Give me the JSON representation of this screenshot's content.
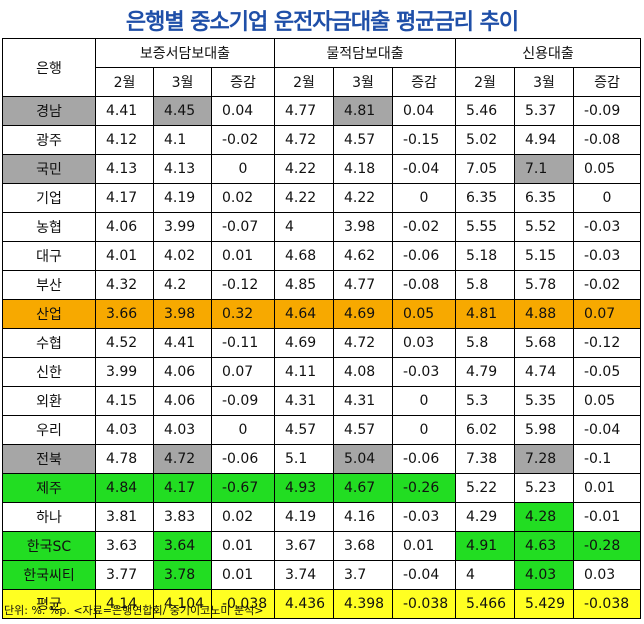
{
  "title": "은행별 중소기업 운전자금대출 평균금리 추이",
  "footnote": "단위: %. %p. <자료=은행연합회/ 중기이코노미 분석>",
  "header": {
    "bank_col": "은행",
    "groups": [
      "보증서담보대출",
      "물적담보대출",
      "신용대출"
    ],
    "sub": [
      "2월",
      "3월",
      "증감"
    ]
  },
  "colors": {
    "gray": "#a6a6a6",
    "orange": "#f7a900",
    "green": "#22dd22",
    "yellow": "#ffff22",
    "title": "#1f4fa8"
  },
  "chart_data": {
    "type": "table",
    "title": "은행별 중소기업 운전자금대출 평균금리 추이",
    "columns": [
      "은행",
      "보증서담보대출 2월",
      "보증서담보대출 3월",
      "보증서담보대출 증감",
      "물적담보대출 2월",
      "물적담보대출 3월",
      "물적담보대출 증감",
      "신용대출 2월",
      "신용대출 3월",
      "신용대출 증감"
    ],
    "rows": [
      {
        "bank": "경남",
        "values": [
          "4.41",
          "4.45",
          "0.04",
          "4.77",
          "4.81",
          "0.04",
          "5.46",
          "5.37",
          "-0.09"
        ],
        "bank_hl": "gray",
        "cell_hl": {
          "1": "gray",
          "4": "gray"
        }
      },
      {
        "bank": "광주",
        "values": [
          "4.12",
          "4.1",
          "-0.02",
          "4.72",
          "4.57",
          "-0.15",
          "5.02",
          "4.94",
          "-0.08"
        ]
      },
      {
        "bank": "국민",
        "values": [
          "4.13",
          "4.13",
          "0",
          "4.22",
          "4.18",
          "-0.04",
          "7.05",
          "7.1",
          "0.05"
        ],
        "bank_hl": "gray",
        "cell_hl": {
          "7": "gray"
        }
      },
      {
        "bank": "기업",
        "values": [
          "4.17",
          "4.19",
          "0.02",
          "4.22",
          "4.22",
          "0",
          "6.35",
          "6.35",
          "0"
        ]
      },
      {
        "bank": "농협",
        "values": [
          "4.06",
          "3.99",
          "-0.07",
          "4",
          "3.98",
          "-0.02",
          "5.55",
          "5.52",
          "-0.03"
        ]
      },
      {
        "bank": "대구",
        "values": [
          "4.01",
          "4.02",
          "0.01",
          "4.68",
          "4.62",
          "-0.06",
          "5.18",
          "5.15",
          "-0.03"
        ]
      },
      {
        "bank": "부산",
        "values": [
          "4.32",
          "4.2",
          "-0.12",
          "4.85",
          "4.77",
          "-0.08",
          "5.8",
          "5.78",
          "-0.02"
        ]
      },
      {
        "bank": "산업",
        "values": [
          "3.66",
          "3.98",
          "0.32",
          "4.64",
          "4.69",
          "0.05",
          "4.81",
          "4.88",
          "0.07"
        ],
        "row_hl": "orange"
      },
      {
        "bank": "수협",
        "values": [
          "4.52",
          "4.41",
          "-0.11",
          "4.69",
          "4.72",
          "0.03",
          "5.8",
          "5.68",
          "-0.12"
        ]
      },
      {
        "bank": "신한",
        "values": [
          "3.99",
          "4.06",
          "0.07",
          "4.11",
          "4.08",
          "-0.03",
          "4.79",
          "4.74",
          "-0.05"
        ]
      },
      {
        "bank": "외환",
        "values": [
          "4.15",
          "4.06",
          "-0.09",
          "4.31",
          "4.31",
          "0",
          "5.3",
          "5.35",
          "0.05"
        ]
      },
      {
        "bank": "우리",
        "values": [
          "4.03",
          "4.03",
          "0",
          "4.57",
          "4.57",
          "0",
          "6.02",
          "5.98",
          "-0.04"
        ]
      },
      {
        "bank": "전북",
        "values": [
          "4.78",
          "4.72",
          "-0.06",
          "5.1",
          "5.04",
          "-0.06",
          "7.38",
          "7.28",
          "-0.1"
        ],
        "bank_hl": "gray",
        "cell_hl": {
          "1": "gray",
          "4": "gray",
          "7": "gray"
        }
      },
      {
        "bank": "제주",
        "values": [
          "4.84",
          "4.17",
          "-0.67",
          "4.93",
          "4.67",
          "-0.26",
          "5.22",
          "5.23",
          "0.01"
        ],
        "bank_hl": "green",
        "cell_hl": {
          "0": "green",
          "1": "green",
          "2": "green",
          "3": "green",
          "4": "green",
          "5": "green"
        }
      },
      {
        "bank": "하나",
        "values": [
          "3.81",
          "3.83",
          "0.02",
          "4.19",
          "4.16",
          "-0.03",
          "4.29",
          "4.28",
          "-0.01"
        ],
        "cell_hl": {
          "7": "green"
        }
      },
      {
        "bank": "한국SC",
        "values": [
          "3.63",
          "3.64",
          "0.01",
          "3.67",
          "3.68",
          "0.01",
          "4.91",
          "4.63",
          "-0.28"
        ],
        "bank_hl": "green",
        "cell_hl": {
          "1": "green",
          "6": "green",
          "7": "green",
          "8": "green"
        }
      },
      {
        "bank": "한국씨티",
        "values": [
          "3.77",
          "3.78",
          "0.01",
          "3.74",
          "3.7",
          "-0.04",
          "4",
          "4.03",
          "0.03"
        ],
        "bank_hl": "green",
        "cell_hl": {
          "1": "green",
          "7": "green"
        }
      },
      {
        "bank": "평균",
        "values": [
          "4.14",
          "4.104",
          "-0.038",
          "4.436",
          "4.398",
          "-0.038",
          "5.466",
          "5.429",
          "-0.038"
        ],
        "row_hl": "yellow"
      }
    ]
  }
}
